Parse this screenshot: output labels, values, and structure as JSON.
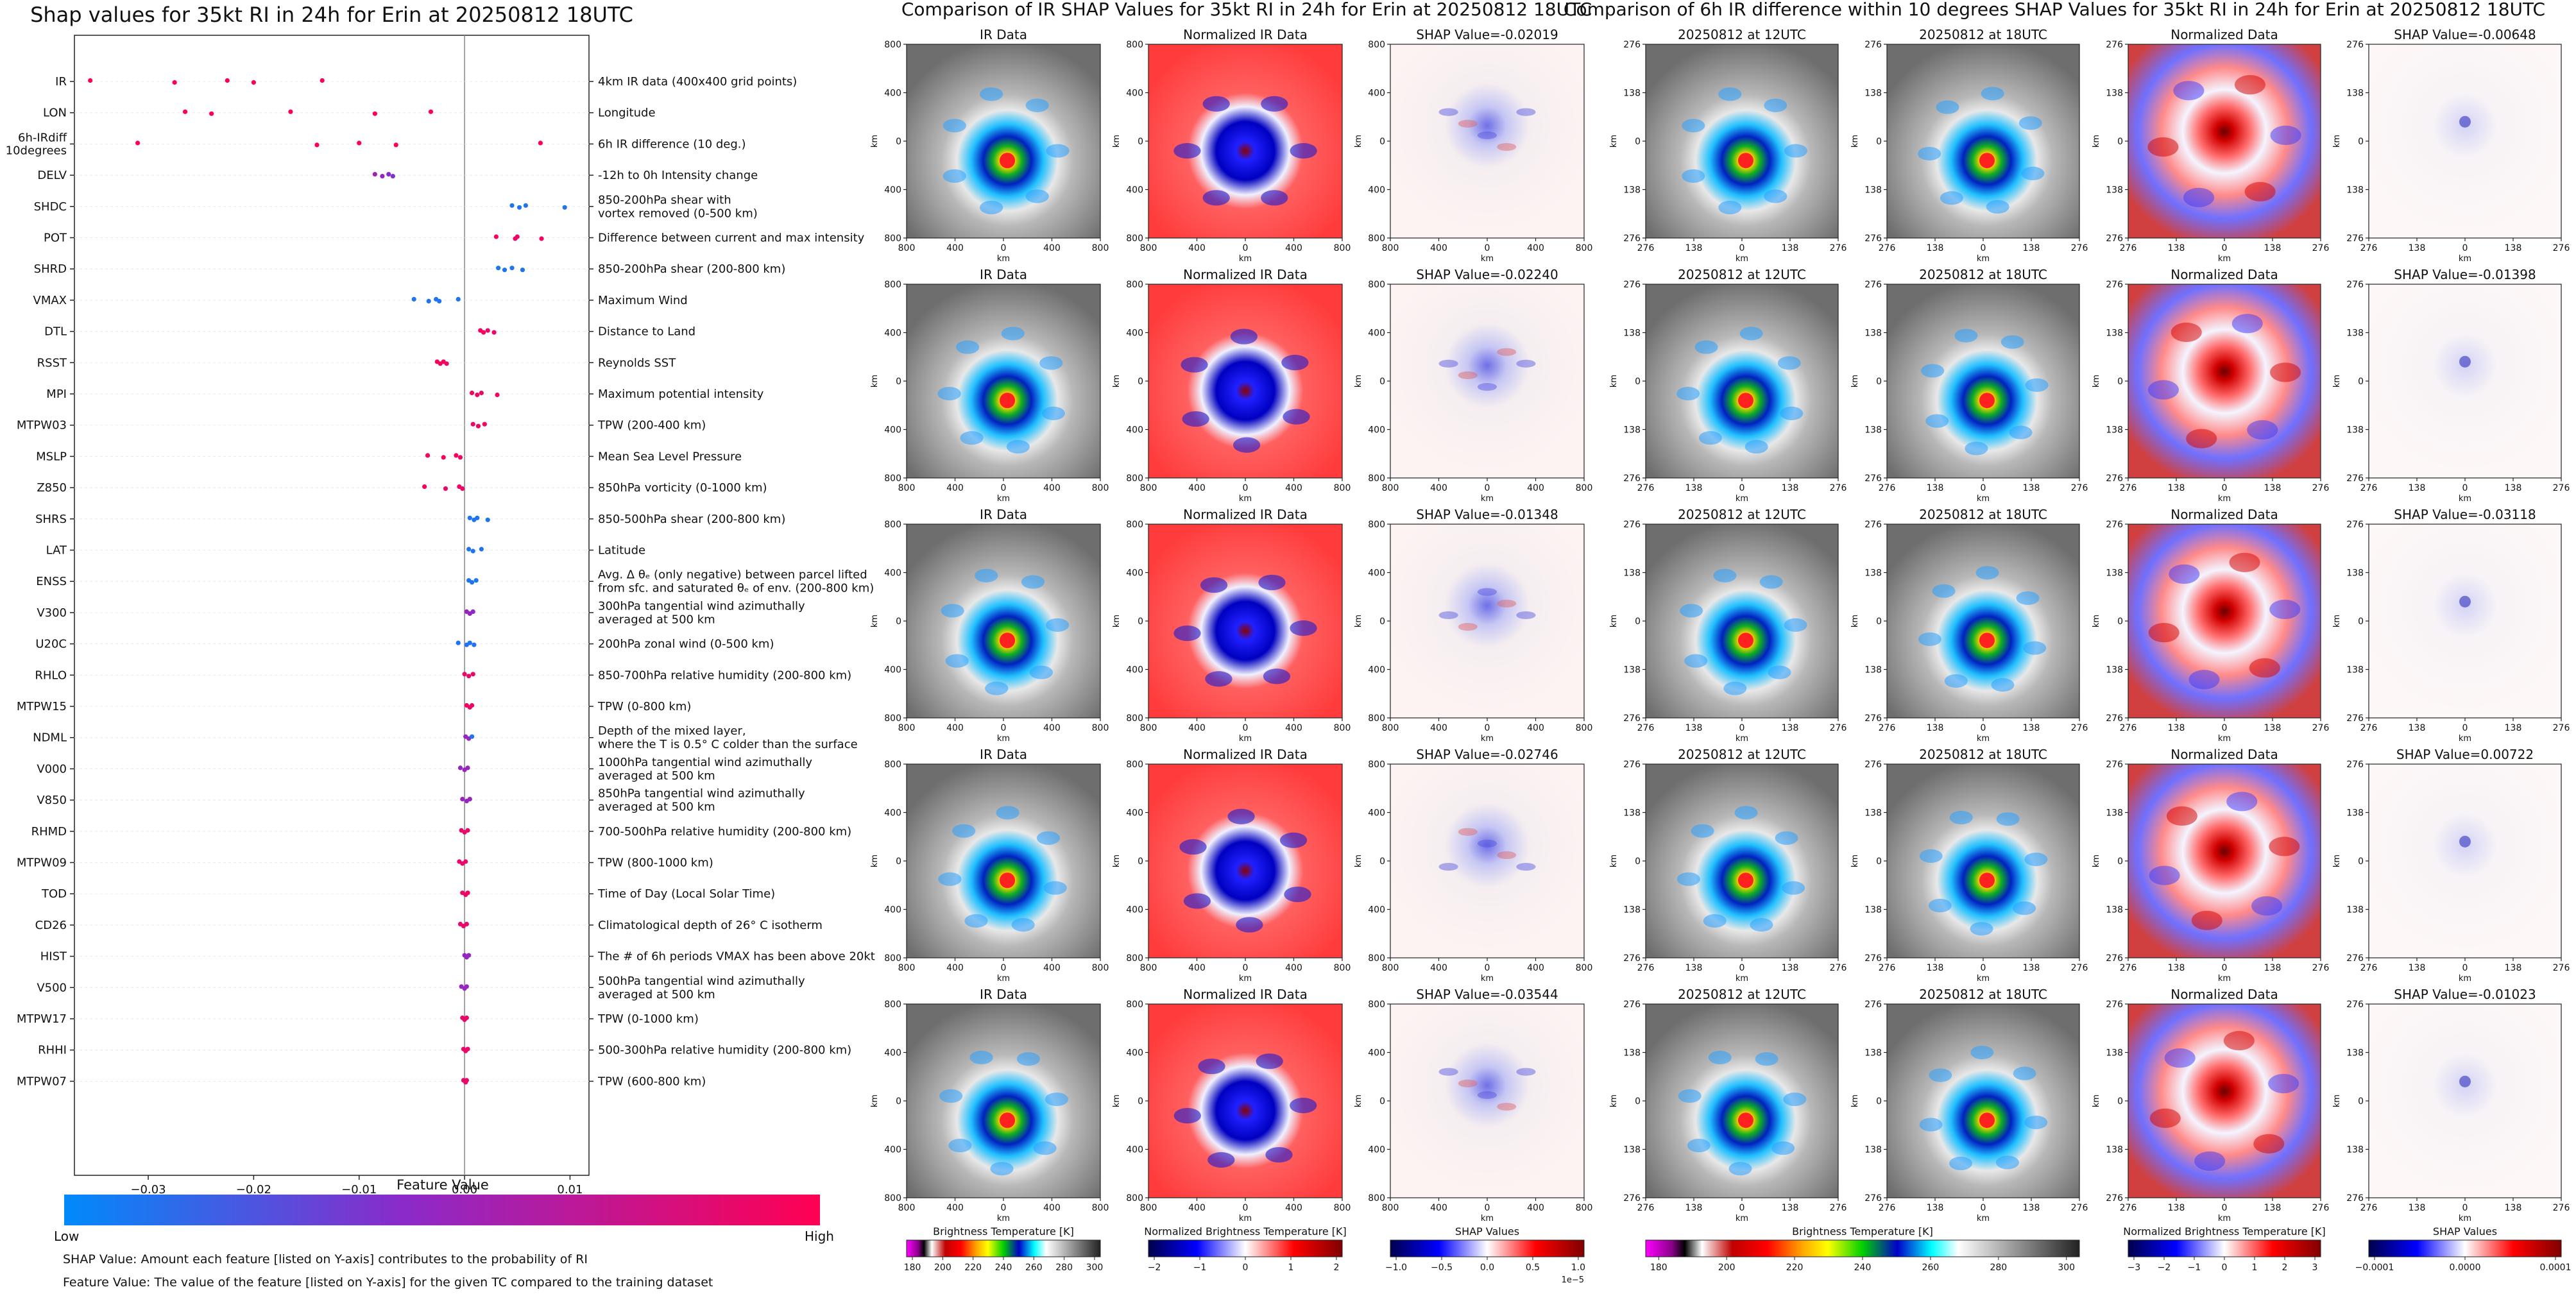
{
  "beeswarm": {
    "title": "Shap values for 35kt RI in 24h for Erin at 20250812 18UTC",
    "xlabel": "SHAP Value",
    "xticks": [
      -0.03,
      -0.02,
      -0.01,
      0.0,
      0.01
    ],
    "xtick_labels": [
      "−0.03",
      "−0.02",
      "−0.01",
      "0.00",
      "0.01"
    ],
    "xlim": [
      -0.037,
      0.0118
    ],
    "features": [
      {
        "name": "IR",
        "desc": [
          "4km IR data (400x400 grid points)"
        ],
        "points": [
          [
            -0.0355,
            1
          ],
          [
            -0.0275,
            1
          ],
          [
            -0.0225,
            1
          ],
          [
            -0.02,
            1
          ],
          [
            -0.0135,
            1
          ]
        ]
      },
      {
        "name": "LON",
        "desc": [
          "Longitude"
        ],
        "points": [
          [
            -0.0265,
            1
          ],
          [
            -0.024,
            1
          ],
          [
            -0.0165,
            1
          ],
          [
            -0.0085,
            1
          ],
          [
            -0.0032,
            1
          ]
        ]
      },
      {
        "name": "6h-IRdiff\n10degrees",
        "desc": [
          "6h IR difference (10 deg.)"
        ],
        "points": [
          [
            -0.031,
            1
          ],
          [
            -0.014,
            1
          ],
          [
            -0.01,
            1
          ],
          [
            -0.0065,
            1
          ],
          [
            0.0072,
            1
          ]
        ]
      },
      {
        "name": "DELV",
        "desc": [
          "-12h to 0h Intensity change"
        ],
        "points": [
          [
            -0.0085,
            0.55
          ],
          [
            -0.0078,
            0.5
          ],
          [
            -0.0072,
            0.45
          ],
          [
            -0.0068,
            0.4
          ]
        ]
      },
      {
        "name": "SHDC",
        "desc": [
          "850-200hPa shear with",
          "vortex removed (0-500 km)"
        ],
        "points": [
          [
            0.0045,
            0.1
          ],
          [
            0.0052,
            0.1
          ],
          [
            0.0058,
            0.1
          ],
          [
            0.0095,
            0.1
          ]
        ]
      },
      {
        "name": "POT",
        "desc": [
          "Difference between current and max intensity"
        ],
        "points": [
          [
            0.003,
            0.97
          ],
          [
            0.0048,
            0.9
          ],
          [
            0.005,
            0.9
          ],
          [
            0.0073,
            0.95
          ]
        ]
      },
      {
        "name": "SHRD",
        "desc": [
          "850-200hPa shear (200-800 km)"
        ],
        "points": [
          [
            0.0032,
            0.1
          ],
          [
            0.0038,
            0.1
          ],
          [
            0.0045,
            0.1
          ],
          [
            0.0055,
            0.1
          ]
        ]
      },
      {
        "name": "VMAX",
        "desc": [
          "Maximum Wind"
        ],
        "points": [
          [
            -0.0048,
            0.1
          ],
          [
            -0.0034,
            0.1
          ],
          [
            -0.0027,
            0.1
          ],
          [
            -0.0024,
            0.1
          ],
          [
            -0.0006,
            0.1
          ]
        ]
      },
      {
        "name": "DTL",
        "desc": [
          "Distance to Land"
        ],
        "points": [
          [
            0.0015,
            0.95
          ],
          [
            0.0018,
            0.95
          ],
          [
            0.0022,
            0.9
          ],
          [
            0.0028,
            0.9
          ]
        ]
      },
      {
        "name": "RSST",
        "desc": [
          "Reynolds SST"
        ],
        "points": [
          [
            -0.0026,
            0.97
          ],
          [
            -0.0023,
            0.95
          ],
          [
            -0.002,
            0.95
          ],
          [
            -0.0017,
            0.9
          ]
        ]
      },
      {
        "name": "MPI",
        "desc": [
          "Maximum potential intensity"
        ],
        "points": [
          [
            0.0007,
            0.95
          ],
          [
            0.0012,
            0.9
          ],
          [
            0.0016,
            0.9
          ],
          [
            0.0031,
            0.93
          ]
        ]
      },
      {
        "name": "MTPW03",
        "desc": [
          "TPW (200-400 km)"
        ],
        "points": [
          [
            0.0008,
            0.9
          ],
          [
            0.0013,
            0.9
          ],
          [
            0.0019,
            0.95
          ]
        ]
      },
      {
        "name": "MSLP",
        "desc": [
          "Mean Sea Level Pressure"
        ],
        "points": [
          [
            -0.0035,
            0.95
          ],
          [
            -0.002,
            0.95
          ],
          [
            -0.0008,
            0.97
          ],
          [
            -0.0004,
            0.9
          ]
        ]
      },
      {
        "name": "Z850",
        "desc": [
          "850hPa vorticity (0-1000 km)"
        ],
        "points": [
          [
            -0.0038,
            0.95
          ],
          [
            -0.0018,
            0.9
          ],
          [
            -0.0005,
            0.95
          ],
          [
            -0.0002,
            0.9
          ]
        ]
      },
      {
        "name": "SHRS",
        "desc": [
          "850-500hPa shear (200-800 km)"
        ],
        "points": [
          [
            0.0005,
            0.1
          ],
          [
            0.0009,
            0.1
          ],
          [
            0.0012,
            0.1
          ],
          [
            0.0022,
            0.1
          ]
        ]
      },
      {
        "name": "LAT",
        "desc": [
          "Latitude"
        ],
        "points": [
          [
            0.0004,
            0.1
          ],
          [
            0.0008,
            0.1
          ],
          [
            0.0016,
            0.1
          ]
        ]
      },
      {
        "name": "ENSS",
        "desc": [
          "Avg. Δ θₑ (only negative) between parcel lifted",
          "from sfc. and saturated θₑ of env. (200-800 km)"
        ],
        "points": [
          [
            0.0004,
            0.1
          ],
          [
            0.0007,
            0.1
          ],
          [
            0.0011,
            0.1
          ]
        ]
      },
      {
        "name": "V300",
        "desc": [
          "300hPa tangential wind azimuthally",
          "averaged at 500 km"
        ],
        "points": [
          [
            0.0002,
            0.5
          ],
          [
            0.0005,
            0.5
          ],
          [
            0.0008,
            0.45
          ]
        ]
      },
      {
        "name": "U20C",
        "desc": [
          "200hPa zonal wind (0-500 km)"
        ],
        "points": [
          [
            -0.0006,
            0.1
          ],
          [
            0.0002,
            0.1
          ],
          [
            0.0005,
            0.1
          ],
          [
            0.0009,
            0.1
          ]
        ]
      },
      {
        "name": "RHLO",
        "desc": [
          "850-700hPa relative humidity (200-800 km)"
        ],
        "points": [
          [
            0.0,
            0.9
          ],
          [
            0.0004,
            0.9
          ],
          [
            0.0008,
            0.9
          ]
        ]
      },
      {
        "name": "MTPW15",
        "desc": [
          "TPW (0-800 km)"
        ],
        "points": [
          [
            0.0002,
            0.95
          ],
          [
            0.0005,
            0.9
          ],
          [
            0.0007,
            0.9
          ]
        ]
      },
      {
        "name": "NDML",
        "desc": [
          "Depth of the mixed layer,",
          "where the T is 0.5° C colder than the surface"
        ],
        "points": [
          [
            0.0001,
            0.5
          ],
          [
            0.0004,
            0.5
          ],
          [
            0.0007,
            0.1
          ]
        ]
      },
      {
        "name": "V000",
        "desc": [
          "1000hPa tangential wind azimuthally",
          "averaged at 500 km"
        ],
        "points": [
          [
            -0.0004,
            0.5
          ],
          [
            0.0,
            0.5
          ],
          [
            0.0003,
            0.5
          ]
        ]
      },
      {
        "name": "V850",
        "desc": [
          "850hPa tangential wind azimuthally",
          "averaged at 500 km"
        ],
        "points": [
          [
            -0.0002,
            0.5
          ],
          [
            0.0002,
            0.5
          ],
          [
            0.0005,
            0.5
          ]
        ]
      },
      {
        "name": "RHMD",
        "desc": [
          "700-500hPa relative humidity (200-800 km)"
        ],
        "points": [
          [
            -0.0003,
            0.9
          ],
          [
            0.0,
            0.9
          ],
          [
            0.0003,
            0.9
          ]
        ]
      },
      {
        "name": "MTPW09",
        "desc": [
          "TPW (800-1000 km)"
        ],
        "points": [
          [
            -0.0005,
            0.9
          ],
          [
            -0.0002,
            0.9
          ],
          [
            0.0001,
            0.9
          ]
        ]
      },
      {
        "name": "TOD",
        "desc": [
          "Time of Day (Local Solar Time)"
        ],
        "points": [
          [
            -0.0002,
            0.9
          ],
          [
            0.0001,
            0.9
          ],
          [
            0.0003,
            0.95
          ]
        ]
      },
      {
        "name": "CD26",
        "desc": [
          "Climatological depth of 26° C isotherm"
        ],
        "points": [
          [
            -0.0004,
            0.9
          ],
          [
            -0.0001,
            0.9
          ],
          [
            0.0002,
            0.9
          ]
        ]
      },
      {
        "name": "HIST",
        "desc": [
          "The # of 6h periods VMAX has been above 20kt"
        ],
        "points": [
          [
            0.0,
            0.5
          ],
          [
            0.0002,
            0.5
          ],
          [
            0.0004,
            0.5
          ]
        ]
      },
      {
        "name": "V500",
        "desc": [
          "500hPa tangential wind azimuthally",
          "averaged at 500 km"
        ],
        "points": [
          [
            -0.0003,
            0.5
          ],
          [
            0.0,
            0.5
          ],
          [
            0.0002,
            0.5
          ]
        ]
      },
      {
        "name": "MTPW17",
        "desc": [
          "TPW (0-1000 km)"
        ],
        "points": [
          [
            -0.0002,
            0.9
          ],
          [
            0.0,
            0.9
          ],
          [
            0.0002,
            0.9
          ]
        ]
      },
      {
        "name": "RHHI",
        "desc": [
          "500-300hPa relative humidity (200-800 km)"
        ],
        "points": [
          [
            -0.0001,
            0.9
          ],
          [
            0.0001,
            0.9
          ],
          [
            0.0003,
            0.9
          ]
        ]
      },
      {
        "name": "MTPW07",
        "desc": [
          "TPW (600-800 km)"
        ],
        "points": [
          [
            -0.0001,
            0.9
          ],
          [
            0.0001,
            0.9
          ],
          [
            0.0002,
            0.9
          ]
        ]
      }
    ],
    "colorbar": {
      "title": "Feature Value",
      "low": "Low",
      "high": "High",
      "low_color": "#1e88e5",
      "high_color": "#ff0d57"
    },
    "notes": [
      "SHAP Value: Amount each feature [listed on Y-axis] contributes to the probability of RI",
      "Feature Value: The value of the feature [listed on Y-axis] for the given TC compared to the training dataset"
    ]
  },
  "ir_section": {
    "title": "Comparison of IR SHAP Values for 35kt RI in 24h for Erin at 20250812 18UTC",
    "col_titles": [
      "IR Data",
      "Normalized IR Data"
    ],
    "shap_titles": [
      "SHAP Value=-0.02019",
      "SHAP Value=-0.02240",
      "SHAP Value=-0.01348",
      "SHAP Value=-0.02746",
      "SHAP Value=-0.03544"
    ],
    "xticks": [
      "800",
      "400",
      "0",
      "400",
      "800"
    ],
    "yticks": [
      "800",
      "400",
      "0",
      "400",
      "800"
    ],
    "axis_label": "km",
    "colorbars": [
      {
        "label": "Brightness Temperature [K]",
        "ticks": [
          "180",
          "200",
          "220",
          "240",
          "260",
          "280",
          "300"
        ]
      },
      {
        "label": "Normalized Brightness Temperature [K]",
        "ticks": [
          "−2",
          "−1",
          "0",
          "1",
          "2"
        ]
      },
      {
        "label": "SHAP Values",
        "ticks": [
          "−1.0",
          "−0.5",
          "0.0",
          "0.5",
          "1.0"
        ],
        "offset": "1e−5"
      }
    ]
  },
  "diff_section": {
    "title": "Comparison of 6h IR difference within 10 degrees SHAP Values for 35kt RI in 24h for Erin at 20250812 18UTC",
    "col_titles": [
      "20250812 at 12UTC",
      "20250812 at 18UTC",
      "Normalized Data"
    ],
    "shap_titles": [
      "SHAP Value=-0.00648",
      "SHAP Value=-0.01398",
      "SHAP Value=-0.03118",
      "SHAP Value=0.00722",
      "SHAP Value=-0.01023"
    ],
    "xticks": [
      "276",
      "138",
      "0",
      "138",
      "276"
    ],
    "yticks": [
      "276",
      "138",
      "0",
      "138",
      "276"
    ],
    "axis_label": "km",
    "colorbars": [
      {
        "label": "Brightness Temperature [K]",
        "ticks": [
          "180",
          "200",
          "220",
          "240",
          "260",
          "280",
          "300"
        ]
      },
      {
        "label": "Normalized Brightness Temperature [K]",
        "ticks": [
          "−3",
          "−2",
          "−1",
          "0",
          "1",
          "2",
          "3"
        ]
      },
      {
        "label": "SHAP Values",
        "ticks": [
          "−0.0001",
          "0.0000",
          "0.0001"
        ]
      }
    ]
  }
}
